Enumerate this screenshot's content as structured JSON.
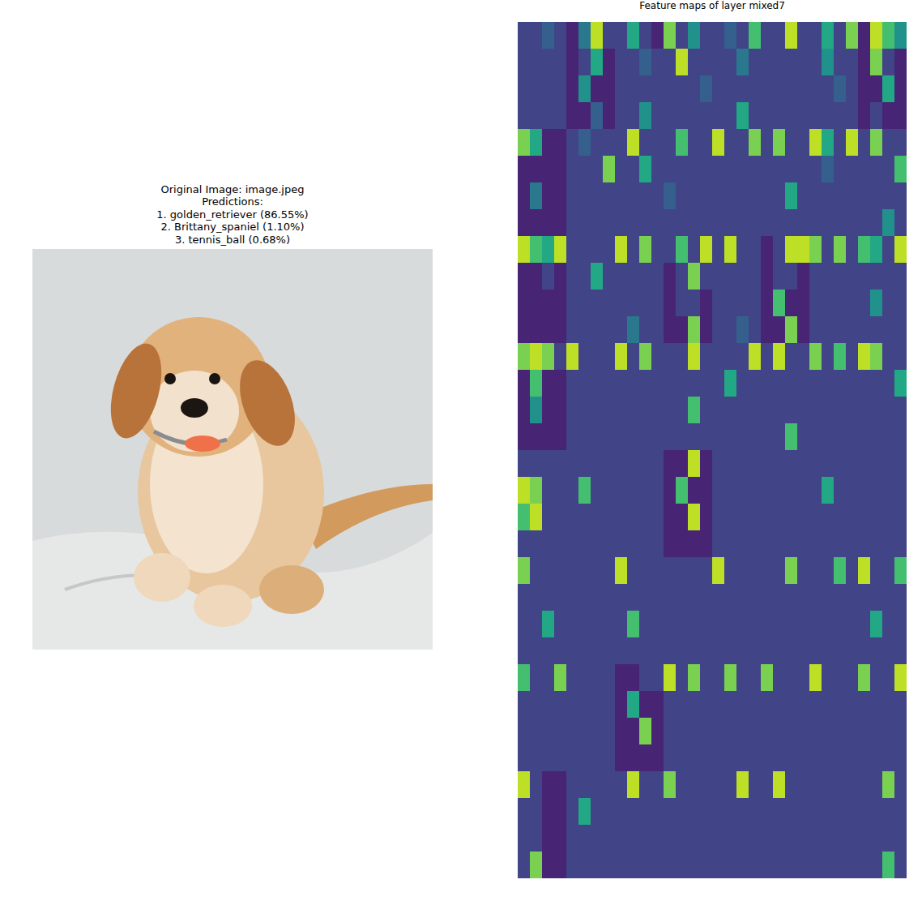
{
  "image_panel": {
    "title_lines": [
      "Original Image: image.jpeg",
      "Predictions:",
      "1. golden_retriever (86.55%)",
      "2. Brittany_spaniel (1.10%)",
      "3. tennis_ball (0.68%)"
    ]
  },
  "chart_data": {
    "type": "heatmap",
    "title": "Feature maps of layer mixed7",
    "color": "viridis",
    "color_range": [
      0,
      10
    ],
    "tick_labels": false,
    "cells": [
      [
        2,
        2,
        3,
        2,
        1,
        4,
        9,
        2,
        2,
        6,
        2,
        1,
        8,
        2,
        5,
        2,
        2,
        3,
        2,
        7,
        2,
        2,
        9,
        2,
        2,
        6,
        2,
        8,
        1,
        9,
        7,
        5
      ],
      [
        2,
        2,
        2,
        2,
        1,
        2,
        6,
        1,
        2,
        2,
        3,
        2,
        2,
        9,
        2,
        2,
        2,
        2,
        4,
        2,
        2,
        2,
        2,
        2,
        2,
        5,
        2,
        2,
        1,
        8,
        2,
        1
      ],
      [
        2,
        2,
        2,
        2,
        1,
        5,
        1,
        1,
        2,
        2,
        2,
        2,
        2,
        2,
        2,
        3,
        2,
        2,
        2,
        2,
        2,
        2,
        2,
        2,
        2,
        2,
        3,
        2,
        1,
        1,
        6,
        1
      ],
      [
        2,
        2,
        2,
        2,
        1,
        1,
        3,
        1,
        2,
        2,
        5,
        2,
        2,
        2,
        2,
        2,
        2,
        2,
        6,
        2,
        2,
        2,
        2,
        2,
        2,
        2,
        2,
        2,
        1,
        2,
        1,
        1
      ],
      [
        8,
        6,
        1,
        1,
        2,
        3,
        2,
        2,
        2,
        9,
        2,
        2,
        2,
        7,
        2,
        2,
        9,
        2,
        2,
        8,
        2,
        8,
        2,
        2,
        9,
        6,
        2,
        9,
        2,
        8,
        2,
        2
      ],
      [
        1,
        1,
        1,
        1,
        2,
        2,
        2,
        8,
        2,
        2,
        6,
        2,
        2,
        2,
        2,
        2,
        2,
        2,
        2,
        2,
        2,
        2,
        2,
        2,
        2,
        3,
        2,
        2,
        2,
        2,
        2,
        7
      ],
      [
        1,
        4,
        1,
        1,
        2,
        2,
        2,
        2,
        2,
        2,
        2,
        2,
        3,
        2,
        2,
        2,
        2,
        2,
        2,
        2,
        2,
        2,
        6,
        2,
        2,
        2,
        2,
        2,
        2,
        2,
        2,
        2
      ],
      [
        1,
        1,
        1,
        1,
        2,
        2,
        2,
        2,
        2,
        2,
        2,
        2,
        2,
        2,
        2,
        2,
        2,
        2,
        2,
        2,
        2,
        2,
        2,
        2,
        2,
        2,
        2,
        2,
        2,
        2,
        5,
        2
      ],
      [
        9,
        7,
        6,
        9,
        2,
        2,
        2,
        2,
        9,
        2,
        8,
        2,
        2,
        7,
        2,
        9,
        2,
        9,
        2,
        2,
        1,
        2,
        9,
        9,
        8,
        2,
        8,
        2,
        7,
        6,
        2,
        9
      ],
      [
        1,
        1,
        2,
        1,
        2,
        2,
        6,
        2,
        2,
        2,
        2,
        2,
        1,
        2,
        8,
        2,
        2,
        2,
        2,
        2,
        1,
        2,
        2,
        1,
        2,
        2,
        2,
        2,
        2,
        2,
        2,
        2
      ],
      [
        1,
        1,
        1,
        1,
        2,
        2,
        2,
        2,
        2,
        2,
        2,
        2,
        1,
        2,
        2,
        1,
        2,
        2,
        2,
        2,
        1,
        7,
        1,
        1,
        2,
        2,
        2,
        2,
        2,
        5,
        2,
        2
      ],
      [
        1,
        1,
        1,
        1,
        2,
        2,
        2,
        2,
        2,
        4,
        2,
        2,
        1,
        1,
        8,
        1,
        2,
        2,
        3,
        2,
        1,
        1,
        8,
        1,
        2,
        2,
        2,
        2,
        2,
        2,
        2,
        2
      ],
      [
        8,
        9,
        8,
        2,
        9,
        2,
        2,
        2,
        9,
        2,
        8,
        2,
        2,
        2,
        9,
        2,
        2,
        2,
        2,
        9,
        2,
        9,
        2,
        2,
        8,
        2,
        7,
        2,
        9,
        8,
        2,
        2
      ],
      [
        1,
        7,
        1,
        1,
        2,
        2,
        2,
        2,
        2,
        2,
        2,
        2,
        2,
        2,
        2,
        2,
        2,
        6,
        2,
        2,
        2,
        2,
        2,
        2,
        2,
        2,
        2,
        2,
        2,
        2,
        2,
        6
      ],
      [
        1,
        5,
        1,
        1,
        2,
        2,
        2,
        2,
        2,
        2,
        2,
        2,
        2,
        2,
        7,
        2,
        2,
        2,
        2,
        2,
        2,
        2,
        2,
        2,
        2,
        2,
        2,
        2,
        2,
        2,
        2,
        2
      ],
      [
        1,
        1,
        1,
        1,
        2,
        2,
        2,
        2,
        2,
        2,
        2,
        2,
        2,
        2,
        2,
        2,
        2,
        2,
        2,
        2,
        2,
        2,
        7,
        2,
        2,
        2,
        2,
        2,
        2,
        2,
        2,
        2
      ],
      [
        2,
        2,
        2,
        2,
        2,
        2,
        2,
        2,
        2,
        2,
        2,
        2,
        1,
        1,
        9,
        1,
        2,
        2,
        2,
        2,
        2,
        2,
        2,
        2,
        2,
        2,
        2,
        2,
        2,
        2,
        2,
        2
      ],
      [
        9,
        8,
        2,
        2,
        2,
        7,
        2,
        2,
        2,
        2,
        2,
        2,
        1,
        7,
        1,
        1,
        2,
        2,
        2,
        2,
        2,
        2,
        2,
        2,
        2,
        6,
        2,
        2,
        2,
        2,
        2,
        2
      ],
      [
        7,
        9,
        2,
        2,
        2,
        2,
        2,
        2,
        2,
        2,
        2,
        2,
        1,
        1,
        9,
        1,
        2,
        2,
        2,
        2,
        2,
        2,
        2,
        2,
        2,
        2,
        2,
        2,
        2,
        2,
        2,
        2
      ],
      [
        2,
        2,
        2,
        2,
        2,
        2,
        2,
        2,
        2,
        2,
        2,
        2,
        1,
        1,
        1,
        1,
        2,
        2,
        2,
        2,
        2,
        2,
        2,
        2,
        2,
        2,
        2,
        2,
        2,
        2,
        2,
        2
      ],
      [
        8,
        2,
        2,
        2,
        2,
        2,
        2,
        2,
        9,
        2,
        2,
        2,
        2,
        2,
        2,
        2,
        9,
        2,
        2,
        2,
        2,
        2,
        8,
        2,
        2,
        2,
        7,
        2,
        9,
        2,
        2,
        7
      ],
      [
        2,
        2,
        2,
        2,
        2,
        2,
        2,
        2,
        2,
        2,
        2,
        2,
        2,
        2,
        2,
        2,
        2,
        2,
        2,
        2,
        2,
        2,
        2,
        2,
        2,
        2,
        2,
        2,
        2,
        2,
        2,
        2
      ],
      [
        2,
        2,
        6,
        2,
        2,
        2,
        2,
        2,
        2,
        7,
        2,
        2,
        2,
        2,
        2,
        2,
        2,
        2,
        2,
        2,
        2,
        2,
        2,
        2,
        2,
        2,
        2,
        2,
        2,
        6,
        2,
        2
      ],
      [
        2,
        2,
        2,
        2,
        2,
        2,
        2,
        2,
        2,
        2,
        2,
        2,
        2,
        2,
        2,
        2,
        2,
        2,
        2,
        2,
        2,
        2,
        2,
        2,
        2,
        2,
        2,
        2,
        2,
        2,
        2,
        2
      ],
      [
        7,
        2,
        2,
        8,
        2,
        2,
        2,
        2,
        1,
        1,
        2,
        2,
        9,
        2,
        8,
        2,
        2,
        8,
        2,
        2,
        8,
        2,
        2,
        2,
        9,
        2,
        2,
        2,
        8,
        2,
        2,
        9
      ],
      [
        2,
        2,
        2,
        2,
        2,
        2,
        2,
        2,
        1,
        6,
        1,
        1,
        2,
        2,
        2,
        2,
        2,
        2,
        2,
        2,
        2,
        2,
        2,
        2,
        2,
        2,
        2,
        2,
        2,
        2,
        2,
        2
      ],
      [
        2,
        2,
        2,
        2,
        2,
        2,
        2,
        2,
        1,
        1,
        8,
        1,
        2,
        2,
        2,
        2,
        2,
        2,
        2,
        2,
        2,
        2,
        2,
        2,
        2,
        2,
        2,
        2,
        2,
        2,
        2,
        2
      ],
      [
        2,
        2,
        2,
        2,
        2,
        2,
        2,
        2,
        1,
        1,
        1,
        1,
        2,
        2,
        2,
        2,
        2,
        2,
        2,
        2,
        2,
        2,
        2,
        2,
        2,
        2,
        2,
        2,
        2,
        2,
        2,
        2
      ],
      [
        9,
        2,
        1,
        1,
        2,
        2,
        2,
        2,
        2,
        9,
        2,
        2,
        8,
        2,
        2,
        2,
        2,
        2,
        9,
        2,
        2,
        9,
        2,
        2,
        2,
        2,
        2,
        2,
        2,
        2,
        8,
        2
      ],
      [
        2,
        2,
        1,
        1,
        2,
        6,
        2,
        2,
        2,
        2,
        2,
        2,
        2,
        2,
        2,
        2,
        2,
        2,
        2,
        2,
        2,
        2,
        2,
        2,
        2,
        2,
        2,
        2,
        2,
        2,
        2,
        2
      ],
      [
        2,
        2,
        1,
        1,
        2,
        2,
        2,
        2,
        2,
        2,
        2,
        2,
        2,
        2,
        2,
        2,
        2,
        2,
        2,
        2,
        2,
        2,
        2,
        2,
        2,
        2,
        2,
        2,
        2,
        2,
        2,
        2
      ],
      [
        2,
        8,
        1,
        1,
        2,
        2,
        2,
        2,
        2,
        2,
        2,
        2,
        2,
        2,
        2,
        2,
        2,
        2,
        2,
        2,
        2,
        2,
        2,
        2,
        2,
        2,
        2,
        2,
        2,
        2,
        7,
        2
      ]
    ]
  }
}
